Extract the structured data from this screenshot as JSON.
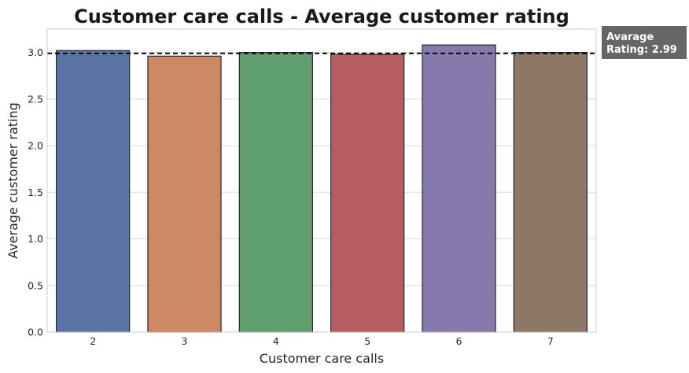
{
  "chart_data": {
    "type": "bar",
    "title": "Customer care calls - Average customer rating",
    "xlabel": "Customer care calls",
    "ylabel": "Average customer rating",
    "categories": [
      "2",
      "3",
      "4",
      "5",
      "6",
      "7"
    ],
    "values": [
      3.02,
      2.96,
      3.0,
      2.98,
      3.08,
      3.0
    ],
    "colors": [
      "#5a74a5",
      "#cc8963",
      "#5f9e6e",
      "#b55d60",
      "#857aab",
      "#8d7866"
    ],
    "ylim": [
      0,
      3.25
    ],
    "yticks": [
      "0.0",
      "0.5",
      "1.0",
      "1.5",
      "2.0",
      "2.5",
      "3.0"
    ],
    "reference_line": {
      "value": 2.99,
      "style": "dashed",
      "color": "#000000"
    },
    "annotation": {
      "lines": [
        "Avarage",
        "Rating: 2.99"
      ],
      "background": "#666666",
      "placement": "top-right, outside plot"
    },
    "grid": "horizontal",
    "background": "#ffffff",
    "bar_edge_color": "#262626"
  }
}
